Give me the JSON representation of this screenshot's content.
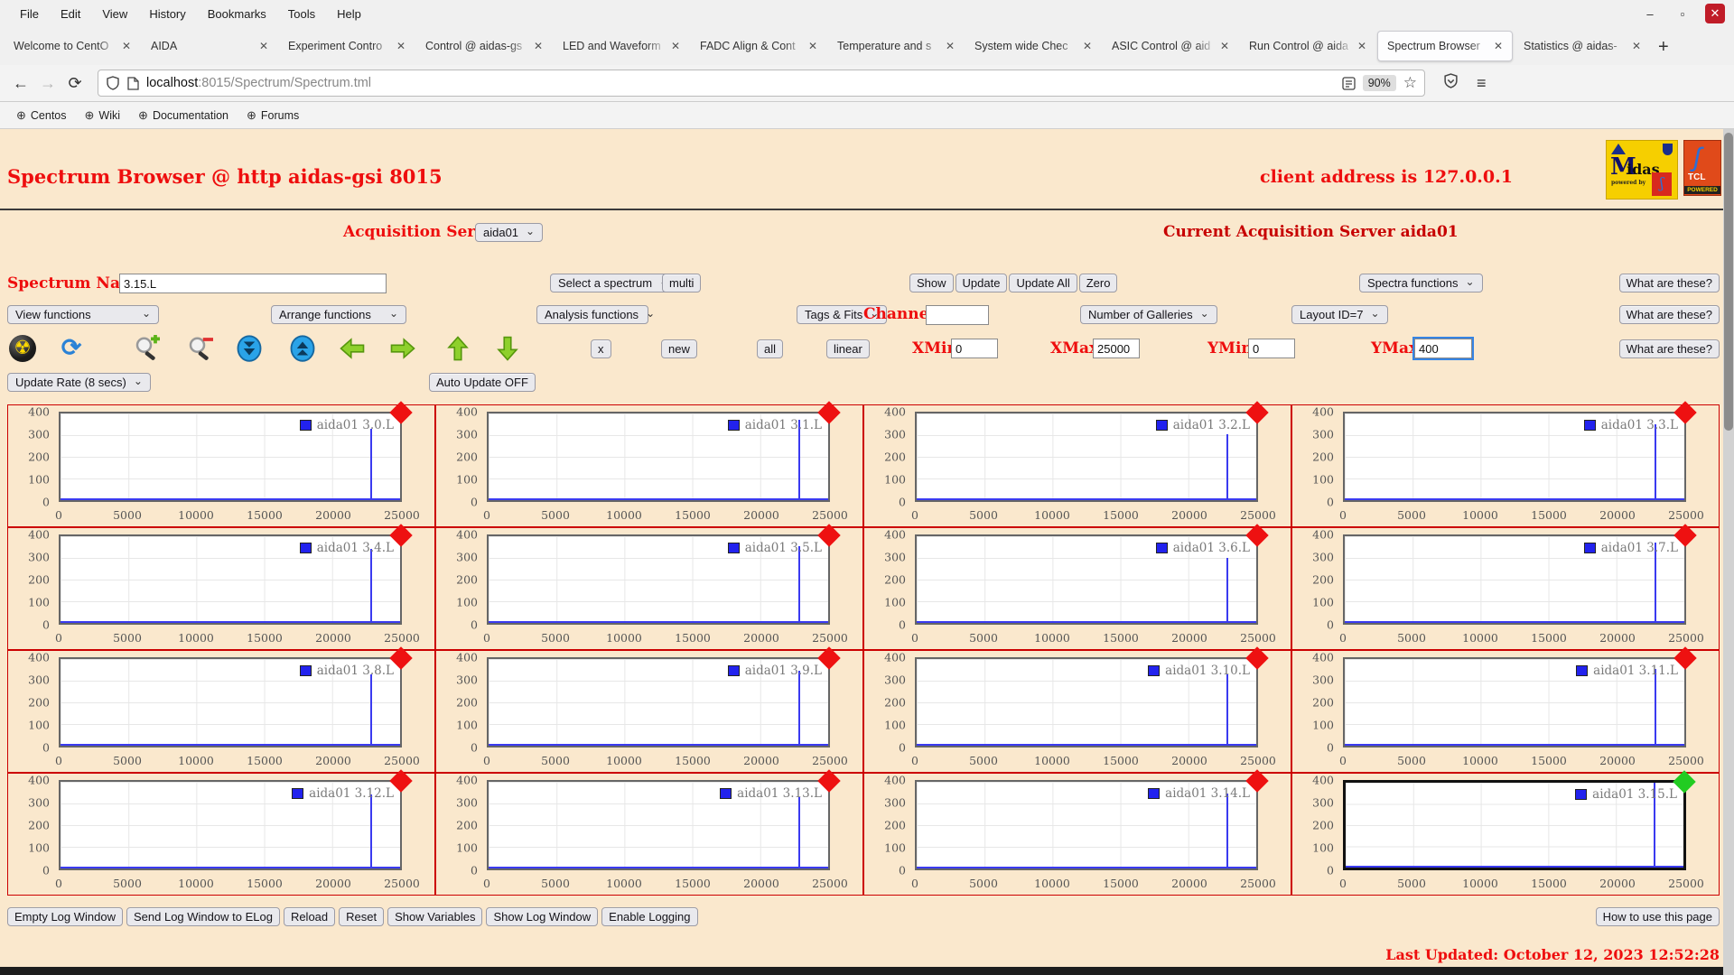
{
  "browser": {
    "menu": [
      "File",
      "Edit",
      "View",
      "History",
      "Bookmarks",
      "Tools",
      "Help"
    ],
    "tabs": [
      {
        "title": "Welcome to CentO",
        "active": false
      },
      {
        "title": "AIDA",
        "active": false
      },
      {
        "title": "Experiment Contro",
        "active": false
      },
      {
        "title": "Control @ aidas-gs",
        "active": false
      },
      {
        "title": "LED and Waveform",
        "active": false
      },
      {
        "title": "FADC Align & Cont",
        "active": false
      },
      {
        "title": "Temperature and s",
        "active": false
      },
      {
        "title": "System wide Chec",
        "active": false
      },
      {
        "title": "ASIC Control @ aid",
        "active": false
      },
      {
        "title": "Run Control @ aida",
        "active": false
      },
      {
        "title": "Spectrum Browser",
        "active": true
      },
      {
        "title": "Statistics @ aidas-",
        "active": false
      }
    ],
    "new_tab": "+",
    "url_host": "localhost",
    "url_rest": ":8015/Spectrum/Spectrum.tml",
    "zoom_level": "90%",
    "bookmarks": [
      "Centos",
      "Wiki",
      "Documentation",
      "Forums"
    ]
  },
  "header": {
    "title": "Spectrum Browser @ http aidas-gsi 8015",
    "client": "client address is 127.0.0.1",
    "logo_midas_m": "M",
    "logo_midas_rest": "idas",
    "logo_midas_powered": "powered by",
    "logo_tcl": "TCL",
    "logo_tcl_powered": "POWERED"
  },
  "acquisition": {
    "label": "Acquisition Servers",
    "server_selected": "aida01",
    "current": "Current Acquisition Server aida01"
  },
  "spectrum_row": {
    "name_label": "Spectrum Name:",
    "name_value": "3.15.L",
    "select_spectrum": "Select a spectrum",
    "multi": "multi",
    "buttons": [
      "Show",
      "Update",
      "Update All",
      "Zero"
    ],
    "spectra_functions": "Spectra functions",
    "what": "What are these?"
  },
  "functions_row": {
    "view_functions": "View functions",
    "arrange_functions": "Arrange functions",
    "analysis_functions": "Analysis functions",
    "tags_fits": "Tags & Fits",
    "channel_label": "Channel:",
    "channel_value": "",
    "galleries": "Number of Galleries",
    "layout": "Layout ID=7",
    "what": "What are these?"
  },
  "toolbar_row": {
    "x_button": "x",
    "new_button": "new",
    "all_button": "all",
    "linear_button": "linear",
    "xmin_label": "XMin",
    "xmin_value": "0",
    "xmax_label": "XMax",
    "xmax_value": "25000",
    "ymin_label": "YMin",
    "ymin_value": "0",
    "ymax_label": "YMax",
    "ymax_value": "400",
    "what": "What are these?"
  },
  "update_row": {
    "rate": "Update Rate (8 secs)",
    "auto": "Auto Update OFF"
  },
  "footer": {
    "buttons": [
      "Empty Log Window",
      "Send Log Window to ELog",
      "Reload",
      "Reset",
      "Show Variables",
      "Show Log Window",
      "Enable Logging"
    ],
    "help": "How to use this page",
    "last_updated": "Last Updated: October 12, 2023 12:52:28"
  },
  "chart_data": {
    "type": "line",
    "x_ticks": [
      0,
      5000,
      10000,
      15000,
      20000,
      25000
    ],
    "y_ticks": [
      400,
      300,
      200,
      100,
      0
    ],
    "xlim": [
      0,
      25000
    ],
    "ylim": [
      0,
      400
    ],
    "grid": true,
    "legend_position": "top-right",
    "series_color": "#3a3af0",
    "spike_x": 22800,
    "marker_red": "#ee1111",
    "marker_green": "#22cc22",
    "charts": [
      {
        "name": "aida01 3.0.L",
        "peak": 330,
        "marker": "red",
        "selected": false
      },
      {
        "name": "aida01 3.1.L",
        "peak": 370,
        "marker": "red",
        "selected": false
      },
      {
        "name": "aida01 3.2.L",
        "peak": 305,
        "marker": "red",
        "selected": false
      },
      {
        "name": "aida01 3.3.L",
        "peak": 350,
        "marker": "red",
        "selected": false
      },
      {
        "name": "aida01 3.4.L",
        "peak": 340,
        "marker": "red",
        "selected": false
      },
      {
        "name": "aida01 3.5.L",
        "peak": 355,
        "marker": "red",
        "selected": false
      },
      {
        "name": "aida01 3.6.L",
        "peak": 300,
        "marker": "red",
        "selected": false
      },
      {
        "name": "aida01 3.7.L",
        "peak": 370,
        "marker": "red",
        "selected": false
      },
      {
        "name": "aida01 3.8.L",
        "peak": 330,
        "marker": "red",
        "selected": false
      },
      {
        "name": "aida01 3.9.L",
        "peak": 345,
        "marker": "red",
        "selected": false
      },
      {
        "name": "aida01 3.10.L",
        "peak": 330,
        "marker": "red",
        "selected": false
      },
      {
        "name": "aida01 3.11.L",
        "peak": 355,
        "marker": "red",
        "selected": false
      },
      {
        "name": "aida01 3.12.L",
        "peak": 340,
        "marker": "red",
        "selected": false
      },
      {
        "name": "aida01 3.13.L",
        "peak": 330,
        "marker": "red",
        "selected": false
      },
      {
        "name": "aida01 3.14.L",
        "peak": 345,
        "marker": "red",
        "selected": false
      },
      {
        "name": "aida01 3.15.L",
        "peak": 400,
        "marker": "green",
        "selected": true
      }
    ]
  }
}
